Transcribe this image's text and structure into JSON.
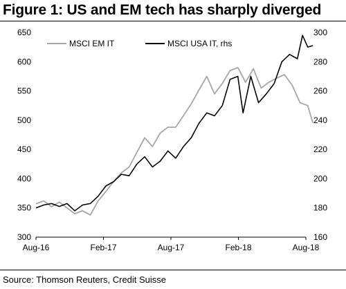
{
  "header": {
    "title": "Figure 1: US and EM tech has sharply diverged"
  },
  "footer": {
    "source": "Source: Thomson Reuters, Credit Suisse"
  },
  "chart_data": {
    "type": "line",
    "title": "Figure 1: US and EM tech has sharply diverged",
    "x_tick_labels": [
      "Aug-16",
      "Feb-17",
      "Aug-17",
      "Feb-18",
      "Aug-18"
    ],
    "x_range": [
      "2016-08",
      "2018-08"
    ],
    "y_left": {
      "ticks": [
        300,
        350,
        400,
        450,
        500,
        550,
        600,
        650
      ],
      "range": [
        300,
        650
      ]
    },
    "y_right": {
      "ticks": [
        160,
        180,
        200,
        220,
        240,
        260,
        280,
        300
      ],
      "range": [
        160,
        300
      ]
    },
    "legend": {
      "placement": "top-left"
    },
    "grid": false,
    "series": [
      {
        "name": "MSCI EM IT",
        "axis": "left",
        "color": "#a6a6a6",
        "points": [
          [
            "2016-08-01",
            357
          ],
          [
            "2016-08-22",
            362
          ],
          [
            "2016-09-12",
            352
          ],
          [
            "2016-10-03",
            360
          ],
          [
            "2016-10-24",
            350
          ],
          [
            "2016-11-14",
            340
          ],
          [
            "2016-12-05",
            345
          ],
          [
            "2016-12-26",
            338
          ],
          [
            "2017-01-16",
            362
          ],
          [
            "2017-02-06",
            378
          ],
          [
            "2017-02-27",
            395
          ],
          [
            "2017-03-20",
            410
          ],
          [
            "2017-04-10",
            420
          ],
          [
            "2017-05-01",
            445
          ],
          [
            "2017-05-22",
            470
          ],
          [
            "2017-06-12",
            455
          ],
          [
            "2017-07-03",
            478
          ],
          [
            "2017-07-24",
            488
          ],
          [
            "2017-08-14",
            488
          ],
          [
            "2017-09-04",
            508
          ],
          [
            "2017-09-25",
            528
          ],
          [
            "2017-10-16",
            552
          ],
          [
            "2017-11-06",
            575
          ],
          [
            "2017-11-27",
            545
          ],
          [
            "2017-12-18",
            563
          ],
          [
            "2018-01-08",
            585
          ],
          [
            "2018-01-29",
            590
          ],
          [
            "2018-02-19",
            565
          ],
          [
            "2018-03-12",
            588
          ],
          [
            "2018-04-02",
            555
          ],
          [
            "2018-04-23",
            565
          ],
          [
            "2018-05-14",
            572
          ],
          [
            "2018-06-04",
            578
          ],
          [
            "2018-06-25",
            560
          ],
          [
            "2018-07-16",
            530
          ],
          [
            "2018-08-06",
            525
          ],
          [
            "2018-08-20",
            495
          ]
        ]
      },
      {
        "name": "MSCI USA IT, rhs",
        "axis": "right",
        "color": "#000000",
        "points": [
          [
            "2016-08-01",
            180
          ],
          [
            "2016-08-22",
            182
          ],
          [
            "2016-09-12",
            183
          ],
          [
            "2016-10-03",
            181
          ],
          [
            "2016-10-24",
            183
          ],
          [
            "2016-11-14",
            178
          ],
          [
            "2016-12-05",
            182
          ],
          [
            "2016-12-26",
            183
          ],
          [
            "2017-01-16",
            188
          ],
          [
            "2017-02-06",
            195
          ],
          [
            "2017-02-27",
            198
          ],
          [
            "2017-03-20",
            203
          ],
          [
            "2017-04-10",
            202
          ],
          [
            "2017-05-01",
            210
          ],
          [
            "2017-05-22",
            215
          ],
          [
            "2017-06-12",
            208
          ],
          [
            "2017-07-03",
            212
          ],
          [
            "2017-07-24",
            219
          ],
          [
            "2017-08-14",
            214
          ],
          [
            "2017-09-04",
            222
          ],
          [
            "2017-09-25",
            228
          ],
          [
            "2017-10-16",
            238
          ],
          [
            "2017-11-06",
            245
          ],
          [
            "2017-11-27",
            243
          ],
          [
            "2017-12-18",
            250
          ],
          [
            "2018-01-08",
            268
          ],
          [
            "2018-01-29",
            270
          ],
          [
            "2018-02-12",
            245
          ],
          [
            "2018-03-05",
            270
          ],
          [
            "2018-03-26",
            252
          ],
          [
            "2018-04-16",
            258
          ],
          [
            "2018-05-07",
            265
          ],
          [
            "2018-05-28",
            280
          ],
          [
            "2018-06-18",
            285
          ],
          [
            "2018-07-09",
            282
          ],
          [
            "2018-07-23",
            298
          ],
          [
            "2018-08-06",
            290
          ],
          [
            "2018-08-20",
            291
          ]
        ]
      }
    ]
  }
}
